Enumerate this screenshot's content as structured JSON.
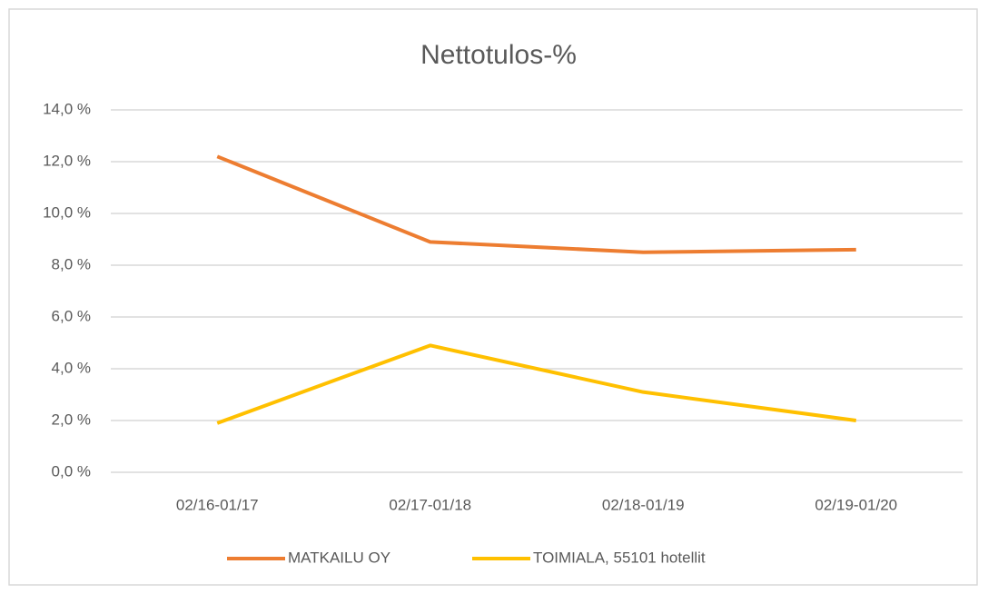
{
  "chart_data": {
    "type": "line",
    "title": "Nettotulos-%",
    "categories": [
      "02/16-01/17",
      "02/17-01/18",
      "02/18-01/19",
      "02/19-01/20"
    ],
    "series": [
      {
        "name": "MATKAILU OY",
        "color": "#ed7d31",
        "values": [
          12.2,
          8.9,
          8.5,
          8.6
        ]
      },
      {
        "name": "TOIMIALA, 55101 hotellit",
        "color": "#ffc000",
        "values": [
          1.9,
          4.9,
          3.1,
          2.0
        ]
      }
    ],
    "ylim": [
      0,
      14
    ],
    "yticks": [
      {
        "value": 0,
        "label": "0,0 %"
      },
      {
        "value": 2,
        "label": "2,0 %"
      },
      {
        "value": 4,
        "label": "4,0 %"
      },
      {
        "value": 6,
        "label": "6,0 %"
      },
      {
        "value": 8,
        "label": "8,0 %"
      },
      {
        "value": 10,
        "label": "10,0 %"
      },
      {
        "value": 12,
        "label": "12,0 %"
      },
      {
        "value": 14,
        "label": "14,0 %"
      }
    ],
    "grid": true,
    "legend": "bottom"
  }
}
